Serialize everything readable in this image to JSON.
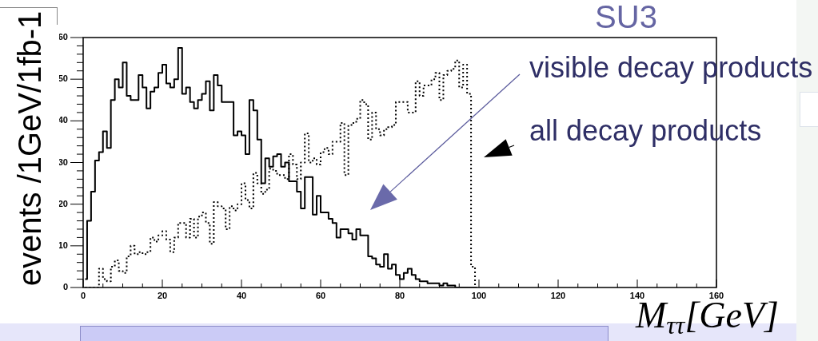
{
  "chart_data": {
    "type": "step",
    "title": "SU3",
    "xlabel": "M$_{ττ}$[GeV]",
    "ylabel": "events /1GeV/1fb-1",
    "marker": "none",
    "x": [
      0.5,
      1.5,
      2.5,
      3.5,
      4.5,
      5.5,
      6.5,
      7.5,
      8.5,
      9.5,
      10.5,
      11.5,
      12.5,
      13.5,
      14.5,
      15.5,
      16.5,
      17.5,
      18.5,
      19.5,
      20.5,
      21.5,
      22.5,
      23.5,
      24.5,
      25.5,
      26.5,
      27.5,
      28.5,
      29.5,
      30.5,
      31.5,
      32.5,
      33.5,
      34.5,
      35.5,
      36.5,
      37.5,
      38.5,
      39.5,
      40.5,
      41.5,
      42.5,
      43.5,
      44.5,
      45.5,
      46.5,
      47.5,
      48.5,
      49.5,
      50.5,
      51.5,
      52.5,
      53.5,
      54.5,
      55.5,
      56.5,
      57.5,
      58.5,
      59.5,
      60.5,
      61.5,
      62.5,
      63.5,
      64.5,
      65.5,
      66.5,
      67.5,
      68.5,
      69.5,
      70.5,
      71.5,
      72.5,
      73.5,
      74.5,
      75.5,
      76.5,
      77.5,
      78.5,
      79.5,
      80.5,
      81.5,
      82.5,
      83.5,
      84.5,
      85.5,
      86.5,
      87.5,
      88.5,
      89.5,
      90.5,
      91.5,
      92.5,
      93.5,
      94.5,
      95.5,
      96.5,
      97.5,
      98.5,
      99.5
    ],
    "series": [
      {
        "color": "#000000",
        "line_style": "solid",
        "values": [
          2,
          16,
          23,
          30.5,
          32.5,
          37.5,
          33.5,
          45,
          50,
          48,
          54,
          46,
          45,
          45,
          51,
          48,
          43,
          47,
          48,
          51.5,
          53.5,
          49,
          48,
          50,
          57.5,
          46.5,
          48,
          44.5,
          43,
          45,
          46.5,
          49.5,
          42.5,
          51,
          48.5,
          44.5,
          44.5,
          44.5,
          36.5,
          37.5,
          36.5,
          32,
          45,
          42.5,
          35.5,
          25,
          31,
          29,
          31.5,
          32,
          29,
          30,
          25.5,
          25.5,
          23,
          19,
          26.5,
          26.5,
          17.5,
          22,
          18,
          18,
          16.5,
          15.5,
          12,
          14,
          14,
          13,
          11.5,
          14,
          12.5,
          12.5,
          7.5,
          7,
          5.5,
          5,
          8,
          4.5,
          5.5,
          3,
          2,
          3.5,
          4.5,
          3,
          2,
          1.5,
          1.5,
          1,
          1,
          1,
          0.5,
          1,
          0.5,
          0.5,
          0,
          0,
          0,
          0,
          0,
          0
        ]
      },
      {
        "color": "#000000",
        "line_style": "dotted",
        "values": [
          0,
          0,
          0,
          0,
          4.5,
          2,
          1.5,
          5,
          6.5,
          4,
          3.5,
          7.5,
          10,
          8,
          8.5,
          8,
          8.5,
          12,
          11,
          12.5,
          13.5,
          11.5,
          8.5,
          12,
          15.5,
          15.5,
          12,
          16.5,
          12,
          17,
          18,
          15.5,
          10.5,
          20.5,
          19.5,
          19,
          14,
          19.5,
          18.5,
          20,
          25,
          21,
          19,
          27.5,
          25,
          22.5,
          23.5,
          28.5,
          28,
          27,
          27,
          26,
          32,
          29.5,
          26,
          30,
          37,
          30,
          31,
          29.5,
          32.5,
          33.5,
          32,
          35,
          35,
          39.5,
          27,
          39,
          39.5,
          40.5,
          45,
          44,
          35.5,
          42,
          38,
          36.5,
          38,
          38.5,
          39,
          44.5,
          44.5,
          44.5,
          42,
          42,
          49.5,
          46,
          48.5,
          48.5,
          50,
          51.5,
          45,
          51,
          52,
          52.5,
          54.5,
          48,
          53.5,
          46.5,
          5,
          0
        ]
      }
    ],
    "xlim": [
      0,
      160
    ],
    "ylim": [
      0,
      60
    ],
    "xticks": [
      0,
      {
        "value": 5,
        "label": null
      },
      {
        "value": 10,
        "label": null
      },
      {
        "value": 15,
        "label": null
      },
      20,
      {
        "value": 25,
        "label": null
      },
      {
        "value": 30,
        "label": null
      },
      {
        "value": 35,
        "label": null
      },
      40,
      {
        "value": 45,
        "label": null
      },
      {
        "value": 50,
        "label": null
      },
      {
        "value": 55,
        "label": null
      },
      60,
      {
        "value": 65,
        "label": null
      },
      {
        "value": 70,
        "label": null
      },
      {
        "value": 75,
        "label": null
      },
      80,
      {
        "value": 85,
        "label": null
      },
      {
        "value": 90,
        "label": null
      },
      {
        "value": 95,
        "label": null
      },
      100,
      {
        "value": 105,
        "label": null
      },
      {
        "value": 110,
        "label": null
      },
      {
        "value": 115,
        "label": null
      },
      120,
      {
        "value": 125,
        "label": null
      },
      {
        "value": 130,
        "label": null
      },
      {
        "value": 135,
        "label": null
      },
      140,
      {
        "value": 145,
        "label": null
      },
      {
        "value": 150,
        "label": null
      },
      {
        "value": 155,
        "label": null
      },
      160
    ],
    "yticks": [
      0,
      {
        "value": 2,
        "label": null
      },
      {
        "value": 4,
        "label": null
      },
      {
        "value": 6,
        "label": null
      },
      {
        "value": 8,
        "label": null
      },
      10,
      {
        "value": 12,
        "label": null
      },
      {
        "value": 14,
        "label": null
      },
      {
        "value": 16,
        "label": null
      },
      {
        "value": 18,
        "label": null
      },
      20,
      {
        "value": 22,
        "label": null
      },
      {
        "value": 24,
        "label": null
      },
      {
        "value": 26,
        "label": null
      },
      {
        "value": 28,
        "label": null
      },
      30,
      {
        "value": 32,
        "label": null
      },
      {
        "value": 34,
        "label": null
      },
      {
        "value": 36,
        "label": null
      },
      {
        "value": 38,
        "label": null
      },
      40,
      {
        "value": 42,
        "label": null
      },
      {
        "value": 44,
        "label": null
      },
      {
        "value": 46,
        "label": null
      },
      {
        "value": 48,
        "label": null
      },
      50,
      {
        "value": 52,
        "label": null
      },
      {
        "value": 54,
        "label": null
      },
      {
        "value": 56,
        "label": null
      },
      {
        "value": 58,
        "label": null
      },
      60
    ],
    "annotations": [
      "visible decay products",
      "all decay products"
    ]
  }
}
